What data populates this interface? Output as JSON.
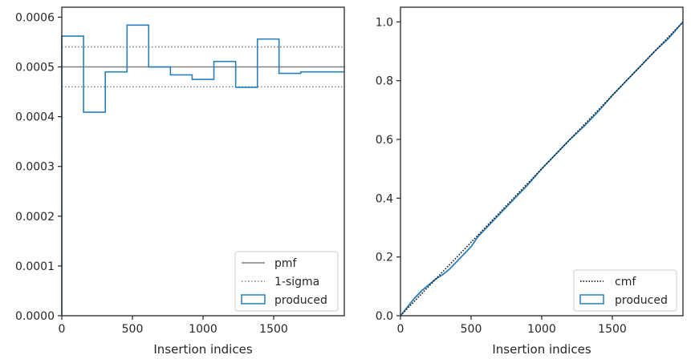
{
  "colors": {
    "produced": "#2a7fb8",
    "pmf": "#808080",
    "sigma": "#808080",
    "cmf": "#000000",
    "axis": "#262626"
  },
  "chart_data": [
    {
      "type": "histogram-step",
      "xlabel": "Insertion indices",
      "ylabel": "",
      "xlim": [
        0,
        2000
      ],
      "ylim": [
        0,
        0.00062
      ],
      "xticks": [
        0,
        500,
        1000,
        1500
      ],
      "xtick_labels": [
        "0",
        "500",
        "1000",
        "1500"
      ],
      "yticks": [
        0,
        0.0001,
        0.0002,
        0.0003,
        0.0004,
        0.0005,
        0.0006
      ],
      "ytick_labels": [
        "0.0000",
        "0.0001",
        "0.0002",
        "0.0003",
        "0.0004",
        "0.0005",
        "0.0006"
      ],
      "legend_position": "lower-right",
      "legend": [
        "pmf",
        "1-sigma",
        "produced"
      ],
      "pmf": 0.0005,
      "sigma_band": [
        0.00046,
        0.00054
      ],
      "series": [
        {
          "name": "produced",
          "bin_edges": [
            0,
            154,
            308,
            462,
            615,
            769,
            923,
            1077,
            1231,
            1385,
            1538,
            1692,
            1846,
            2000
          ],
          "values": [
            0.000562,
            0.000409,
            0.00049,
            0.000584,
            0.0005,
            0.000484,
            0.000475,
            0.000511,
            0.000459,
            0.000556,
            0.000487,
            0.00049,
            0.00049
          ]
        }
      ]
    },
    {
      "type": "line",
      "xlabel": "Insertion indices",
      "ylabel": "",
      "xlim": [
        0,
        2000
      ],
      "ylim": [
        0,
        1.05
      ],
      "xticks": [
        0,
        500,
        1000,
        1500
      ],
      "xtick_labels": [
        "0",
        "500",
        "1000",
        "1500"
      ],
      "yticks": [
        0,
        0.2,
        0.4,
        0.6,
        0.8,
        1.0
      ],
      "ytick_labels": [
        "0.0",
        "0.2",
        "0.4",
        "0.6",
        "0.8",
        "1.0"
      ],
      "legend_position": "lower-right",
      "legend": [
        "cmf",
        "produced"
      ],
      "series": [
        {
          "name": "cmf",
          "x": [
            0,
            2000
          ],
          "y": [
            0,
            1.0
          ]
        },
        {
          "name": "produced",
          "x": [
            0,
            50,
            100,
            150,
            200,
            250,
            300,
            350,
            400,
            450,
            500,
            550,
            600,
            700,
            800,
            900,
            1000,
            1100,
            1200,
            1300,
            1400,
            1500,
            1600,
            1700,
            1800,
            1900,
            2000
          ],
          "y": [
            0,
            0.03,
            0.06,
            0.085,
            0.105,
            0.125,
            0.14,
            0.16,
            0.185,
            0.21,
            0.235,
            0.27,
            0.295,
            0.345,
            0.395,
            0.445,
            0.5,
            0.55,
            0.6,
            0.645,
            0.695,
            0.75,
            0.8,
            0.85,
            0.9,
            0.945,
            1.0
          ]
        }
      ]
    }
  ]
}
